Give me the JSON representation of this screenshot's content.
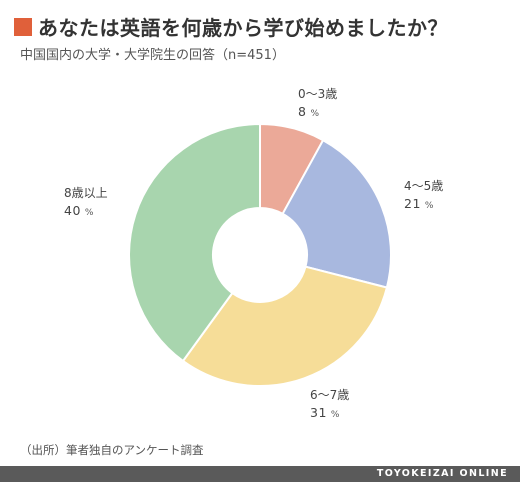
{
  "header": {
    "title": "あなたは英語を何歳から学び始めましたか？",
    "subtitle": "中国国内の大学・大学院生の回答（n=451）",
    "accent_color": "#e0603a"
  },
  "chart_data": {
    "type": "pie",
    "donut": true,
    "start": "top, clockwise",
    "unit": "%",
    "categories": [
      "0〜3歳",
      "4〜5歳",
      "6〜7歳",
      "8歳以上"
    ],
    "values": [
      8,
      21,
      31,
      40
    ],
    "colors": [
      "#eba998",
      "#a8b8df",
      "#f6dd98",
      "#a8d5ae"
    ]
  },
  "labels": [
    {
      "name": "0〜3歳",
      "value": "8",
      "unit": "%"
    },
    {
      "name": "4〜5歳",
      "value": "21",
      "unit": "%"
    },
    {
      "name": "6〜7歳",
      "value": "31",
      "unit": "%"
    },
    {
      "name": "8歳以上",
      "value": "40",
      "unit": "%"
    }
  ],
  "footer": {
    "source": "（出所）筆者独自のアンケート調査",
    "brand": "TOYOKEIZAI ONLINE"
  }
}
